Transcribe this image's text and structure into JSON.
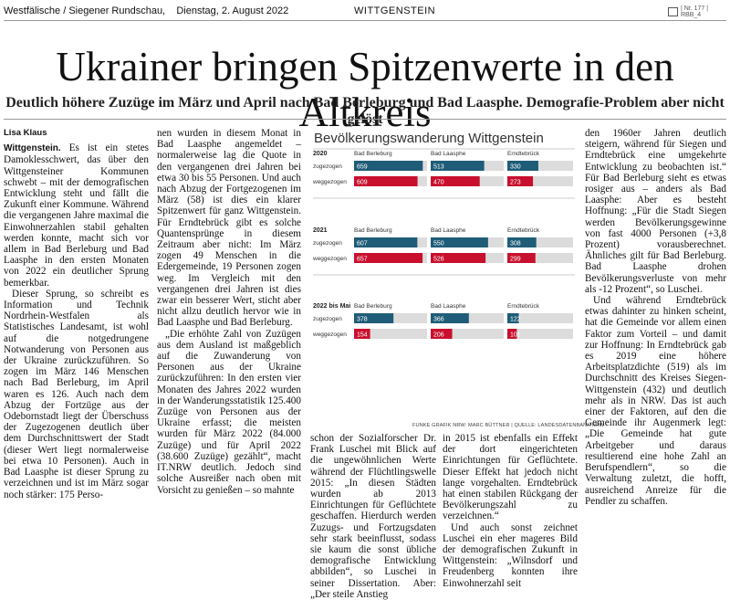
{
  "header": {
    "publication": "Westfälische / Siegener Rundschau,",
    "date": "Dienstag, 2. August 2022",
    "section": "WITTGENSTEIN",
    "page_ref": "| Nr. 177 | RBB_4"
  },
  "article": {
    "title": "Ukrainer bringen Spitzenwerte in den Altkreis",
    "subtitle": "Deutlich höhere Zuzüge im März und April nach Bad Berleburg und Bad Laasphe. Demografie-Problem aber nicht gelöst",
    "author": "Lisa Klaus",
    "dateline": "Wittgenstein.",
    "col1": [
      "Es ist ein stetes Damoklesschwert, das über den Wittgensteiner Kommunen schwebt – mit der demografischen Entwicklung steht und fällt die Zukunft einer Kommune. Während die vergangenen Jahre maximal die Einwohnerzahlen stabil gehalten werden konnte, macht sich vor allem in Bad Berleburg und Bad Laasphe in den ersten Monaten von 2022 ein deutlicher Sprung bemerkbar.",
      "Dieser Sprung, so schreibt es Information und Technik Nordrhein-Westfalen als Statistisches Landesamt, ist wohl auf die notgedrungene Notwanderung von Personen aus der Ukraine zurückzuführen. So zogen im März 146 Menschen nach Bad Berleburg, im April waren es 126. Auch nach dem Abzug der Fortzüge aus der Odebornstadt liegt der Überschuss der Zugezogenen deutlich über dem Durchschnittswert der Stadt (dieser Wert liegt normalerweise bei etwa 10 Personen). Auch in Bad Laasphe ist dieser Sprung zu verzeichnen und ist im März sogar noch stärker: 175 Perso-"
    ],
    "col2": [
      "nen wurden in diesem Monat in Bad Laasphe angemeldet – normalerweise lag die Quote in den vergangenen drei Jahren bei etwa 30 bis 55 Personen. Und auch nach Abzug der Fortgezogenen im März (58) ist dies ein klarer Spitzenwert für ganz Wittgenstein. Für Erndtebrück gibt es solche Quantensprünge in diesem Zeitraum aber nicht: Im März zogen 49 Menschen in die Edergemeinde, 19 Personen zogen weg. Im Vergleich mit den vergangenen drei Jahren ist dies zwar ein besserer Wert, sticht aber nicht allzu deutlich hervor wie in Bad Laasphe und Bad Berleburg.",
      "„Die erhöhte Zahl von Zuzügen aus dem Ausland ist maßgeblich auf die Zuwanderung von Personen aus der Ukraine zurückzuführen: In den ersten vier Monaten des Jahres 2022 wurden in der Wanderungsstatistik 125.400 Zuzüge von Personen aus der Ukraine erfasst; die meisten wurden für März 2022 (84.000 Zuzüge) und für April 2022 (38.600 Zuzüge) gezählt“, macht IT.NRW deutlich. Jedoch sind solche Ausreißer nach oben mit Vorsicht zu genießen – so mahnte"
    ],
    "col3": [
      "schon der Sozialforscher Dr. Frank Luschei mit Blick auf die ungewöhnlichen Werte während der Flüchtlingswelle 2015: „In diesen Städten wurden ab 2013 Einrichtungen für Geflüchtete geschaffen. Hierdurch werden Zuzugs- und Fortzugsdaten sehr stark beeinflusst, sodass sie kaum die sonst übliche demografische Entwicklung abbilden“, so Luschei in seiner Dissertation. Aber: „Der steile Anstieg"
    ],
    "col4": [
      "in 2015 ist ebenfalls ein Effekt der dort eingerichteten Einrichtungen für Geflüchtete. Dieser Effekt hat jedoch nicht lange vorgehalten. Erndtebrück hat einen stabilen Rückgang der Bevölkerungszahl zu verzeichnen.“",
      "Und auch sonst zeichnet Luschei ein eher mageres Bild der demografischen Zukunft in Wittgenstein: „Wilnsdorf und Freudenberg konnten ihre Einwohnerzahl seit"
    ],
    "col5": [
      "den 1960er Jahren deutlich steigern, während für Siegen und Erndtebrück eine umgekehrte Entwicklung zu beobachten ist.“ Für Bad Berleburg sieht es etwas rosiger aus – anders als Bad Laasphe: Aber es besteht Hoffnung: „Für die Stadt Siegen werden Bevölkerungsgewinne von fast 4000 Personen (+3,8 Prozent) vorausberechnet. Ähnliches gilt für Bad Berleburg. Bad Laasphe drohen Bevölkerungsverluste von mehr als -12 Prozent“, so Luschei.",
      "Und während Erndtebrück etwas dahinter zu hinken scheint, hat die Gemeinde vor allem einen Faktor zum Vorteil – und damit zur Hoffnung: In Erndtebrück gab es 2019 eine höhere Arbeitsplatzdichte (519) als im Durchschnitt des Kreises Siegen-Wittgenstein (432) und deutlich mehr als in NRW. Das ist auch einer der Faktoren, auf den die Gemeinde ihr Augenmerk legt: „Die Gemeinde hat gute Arbeitgeber und daraus resultierend eine hohe Zahl an Berufspendlern“, so die Verwaltung zuletzt, die hofft, ausreichend Anreize für die Pendler zu schaffen."
    ]
  },
  "chart_data": {
    "type": "bar",
    "title": "Bevölkerungswanderung Wittgenstein",
    "credit": "FUNKE GRAFIK NRW: MARC BÜTTNER | QUELLE: LANDESDATENBANK NRW",
    "towns": [
      "Bad Berleburg",
      "Bad Laasphe",
      "Erndtebrück"
    ],
    "series": [
      {
        "name": "zugezogen",
        "color": "#1e5c78"
      },
      {
        "name": "weggezogen",
        "color": "#c8102e"
      }
    ],
    "groups": [
      {
        "period": "2020",
        "zugezogen": [
          659,
          513,
          330
        ],
        "weggezogen": [
          609,
          470,
          273
        ]
      },
      {
        "period": "2021",
        "zugezogen": [
          607,
          550,
          308
        ],
        "weggezogen": [
          657,
          526,
          299
        ]
      },
      {
        "period": "2022 bis Mai",
        "zugezogen": [
          378,
          366,
          122
        ],
        "weggezogen": [
          154,
          206,
          101
        ]
      }
    ],
    "xlim": [
      0,
      700
    ]
  }
}
